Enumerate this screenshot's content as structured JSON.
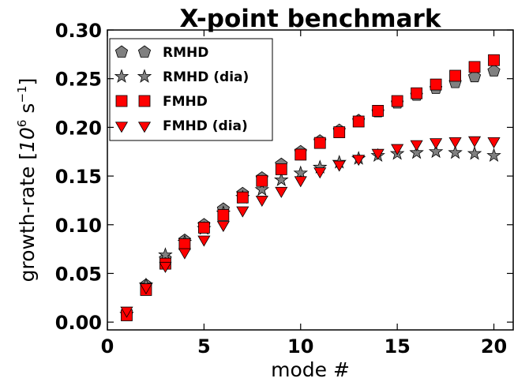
{
  "chart_data": {
    "type": "scatter",
    "title": "X-point benchmark",
    "xlabel": "mode #",
    "ylabel_text": "growth-rate [",
    "ylabel_base": "10",
    "ylabel_exp1": "6",
    "ylabel_unit": " s",
    "ylabel_exp2": "−1",
    "ylabel_close": "]",
    "xlim": [
      0,
      21
    ],
    "ylim": [
      -0.008,
      0.3
    ],
    "xticks": [
      0,
      5,
      10,
      15,
      20
    ],
    "xtick_labels": [
      "0",
      "5",
      "10",
      "15",
      "20"
    ],
    "yticks": [
      0.0,
      0.05,
      0.1,
      0.15,
      0.2,
      0.25,
      0.3
    ],
    "ytick_labels": [
      "0.00",
      "0.05",
      "0.10",
      "0.15",
      "0.20",
      "0.25",
      "0.30"
    ],
    "grid": false,
    "legend_position": "top-left",
    "x": [
      1,
      2,
      3,
      4,
      5,
      6,
      7,
      8,
      9,
      10,
      11,
      12,
      13,
      14,
      15,
      16,
      17,
      18,
      19,
      20
    ],
    "series": [
      {
        "name": "RMHD",
        "marker": "pentagon",
        "color": "#808080",
        "values": [
          0.008,
          0.038,
          0.065,
          0.084,
          0.1,
          0.116,
          0.132,
          0.148,
          0.162,
          0.175,
          0.186,
          0.197,
          0.207,
          0.216,
          0.225,
          0.233,
          0.24,
          0.246,
          0.252,
          0.258
        ]
      },
      {
        "name": "RMHD (dia)",
        "marker": "star",
        "color": "#808080",
        "values": [
          0.008,
          0.038,
          0.069,
          0.082,
          0.096,
          0.112,
          0.128,
          0.136,
          0.146,
          0.153,
          0.159,
          0.164,
          0.168,
          0.171,
          0.173,
          0.174,
          0.175,
          0.174,
          0.173,
          0.171
        ]
      },
      {
        "name": "FMHD",
        "marker": "square",
        "color": "#ff0000",
        "values": [
          0.007,
          0.033,
          0.06,
          0.08,
          0.097,
          0.11,
          0.128,
          0.145,
          0.157,
          0.172,
          0.184,
          0.195,
          0.206,
          0.217,
          0.227,
          0.235,
          0.244,
          0.253,
          0.262,
          0.269
        ]
      },
      {
        "name": "FMHD (dia)",
        "marker": "triangle-down",
        "color": "#ff0000",
        "values": [
          0.012,
          0.036,
          0.058,
          0.072,
          0.085,
          0.1,
          0.115,
          0.126,
          0.135,
          0.146,
          0.155,
          0.162,
          0.168,
          0.174,
          0.179,
          0.183,
          0.185,
          0.186,
          0.187,
          0.186
        ]
      }
    ]
  }
}
